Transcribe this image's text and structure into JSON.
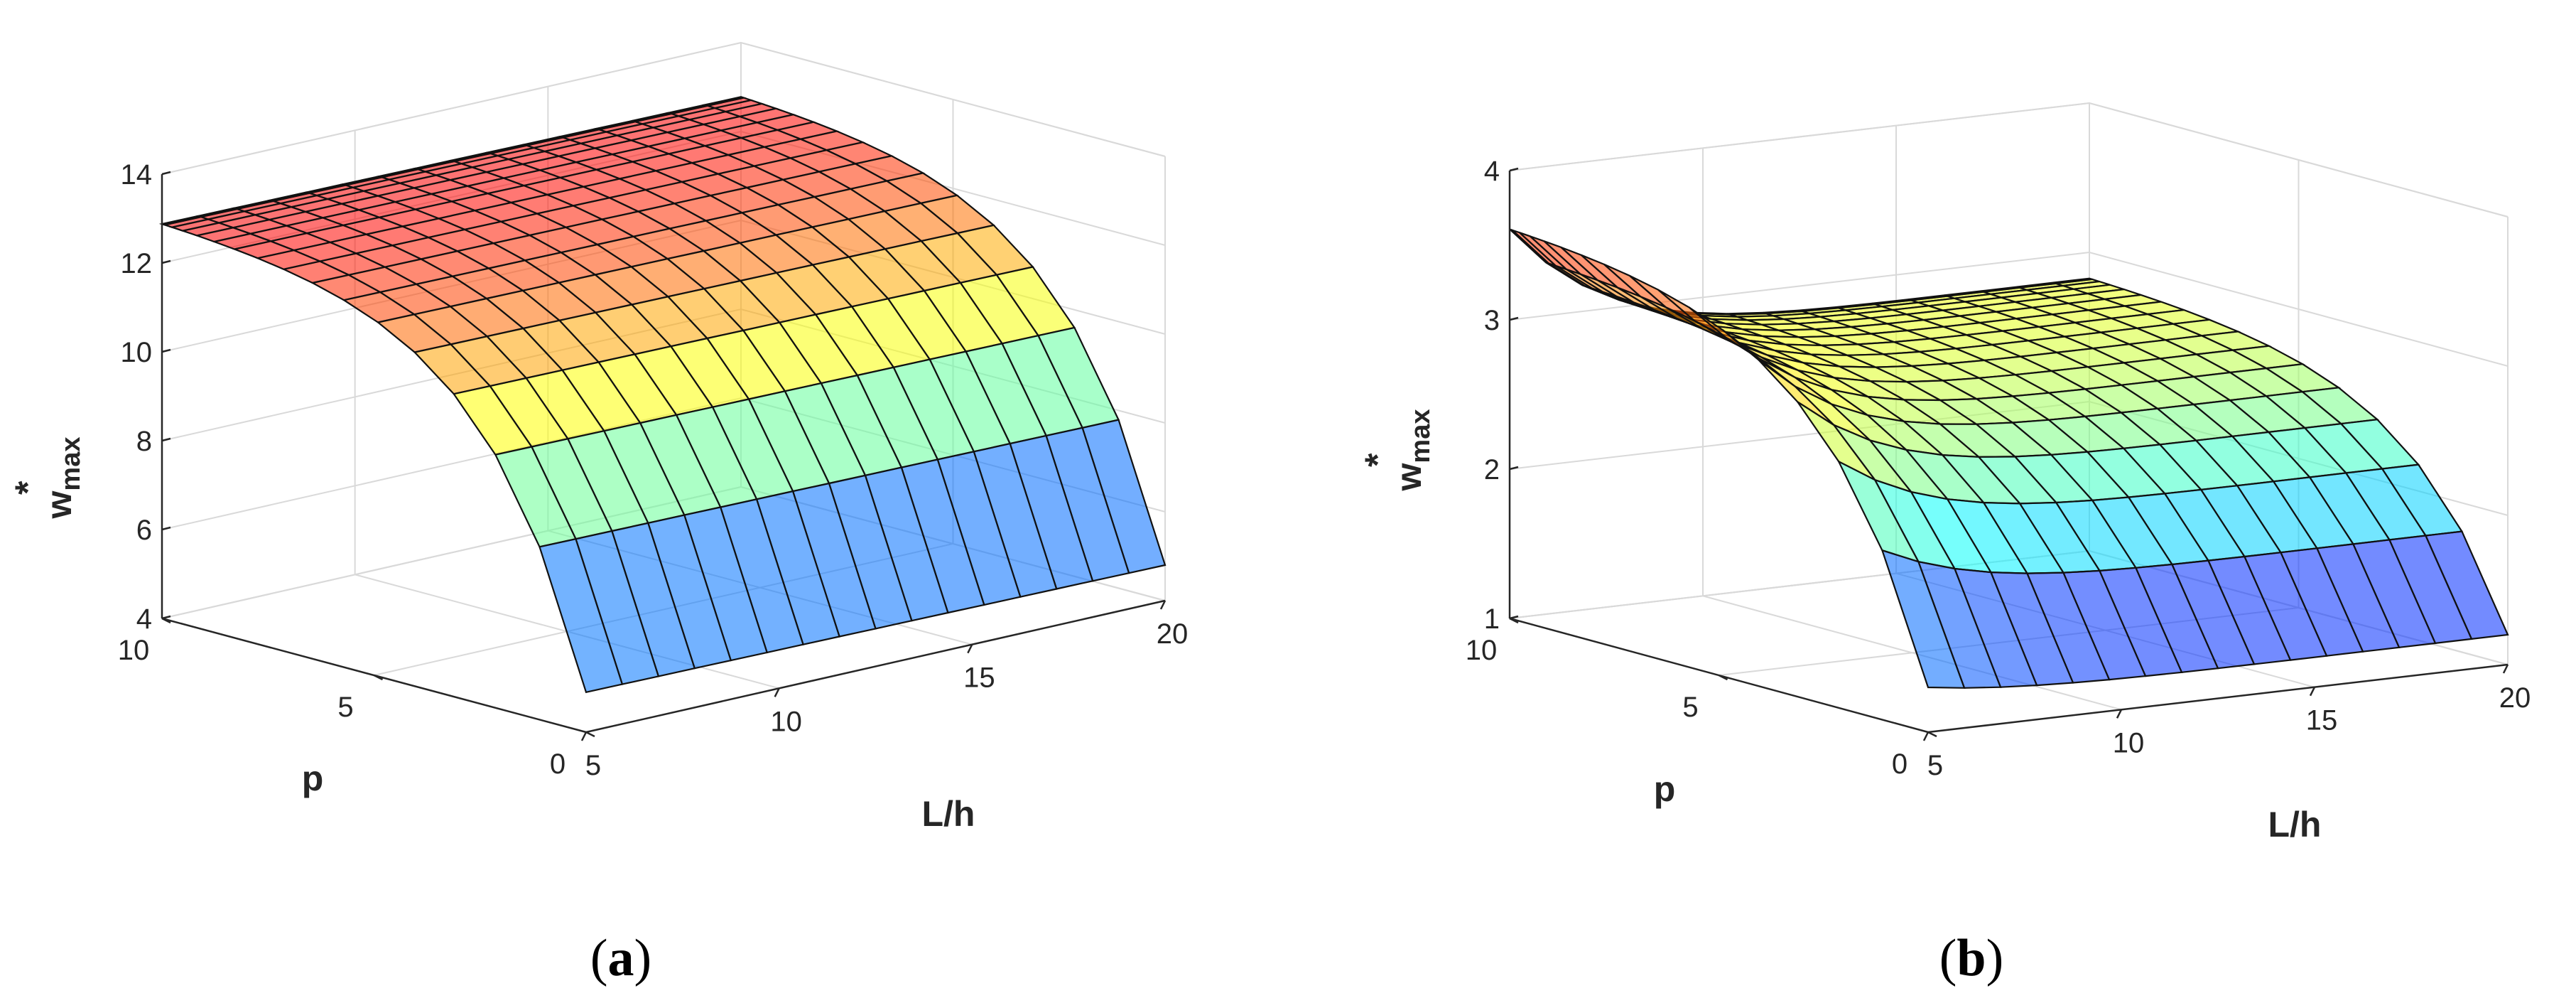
{
  "chart_data": [
    {
      "id": "a",
      "type": "surface",
      "caption": "a",
      "xlabel": "L/h",
      "ylabel": "p",
      "zlabel": "w",
      "zlabel_superscript": "*",
      "zlabel_subscript": "max",
      "xlim": [
        5,
        20
      ],
      "ylim": [
        0,
        10
      ],
      "zlim": [
        4,
        14
      ],
      "xticks": [
        "5",
        "10",
        "15",
        "20"
      ],
      "yticks": [
        "0",
        "5",
        "10"
      ],
      "zticks": [
        "4",
        "6",
        "8",
        "10",
        "12",
        "14"
      ],
      "surface": {
        "x_range": [
          5,
          20
        ],
        "y_range": [
          0,
          10
        ],
        "corner_values": {
          "L/h=5,p=0": 4.9,
          "L/h=20,p=0": 4.9,
          "L/h=5,p=10": 13.0,
          "L/h=20,p=10": 12.9
        }
      }
    },
    {
      "id": "b",
      "type": "surface",
      "caption": "b",
      "xlabel": "L/h",
      "ylabel": "p",
      "zlabel": "w",
      "zlabel_superscript": "*",
      "zlabel_subscript": "max",
      "xlim": [
        5,
        20
      ],
      "ylim": [
        0,
        10
      ],
      "zlim": [
        1,
        4
      ],
      "xticks": [
        "5",
        "10",
        "15",
        "20"
      ],
      "yticks": [
        "0",
        "5",
        "10"
      ],
      "zticks": [
        "1",
        "2",
        "3",
        "4"
      ],
      "surface": {
        "x_range": [
          5,
          20
        ],
        "y_range": [
          0,
          10
        ],
        "corner_values": {
          "L/h=5,p=0": 1.3,
          "L/h=20,p=0": 1.2,
          "L/h=5,p=10": 3.65,
          "L/h=20,p=10": 2.85
        }
      }
    }
  ]
}
